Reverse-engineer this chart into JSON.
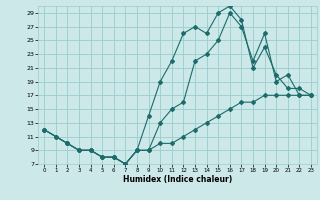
{
  "xlabel": "Humidex (Indice chaleur)",
  "bg_color": "#cce8e8",
  "grid_color": "#99cccc",
  "line_color": "#1e6b6b",
  "xlim": [
    -0.5,
    23.5
  ],
  "ylim": [
    7,
    30
  ],
  "xticks": [
    0,
    1,
    2,
    3,
    4,
    5,
    6,
    7,
    8,
    9,
    10,
    11,
    12,
    13,
    14,
    15,
    16,
    17,
    18,
    19,
    20,
    21,
    22,
    23
  ],
  "yticks": [
    7,
    9,
    11,
    13,
    15,
    17,
    19,
    21,
    23,
    25,
    27,
    29
  ],
  "line1_x": [
    0,
    1,
    2,
    3,
    4,
    5,
    6,
    7,
    8,
    9,
    10,
    11,
    12,
    13,
    14,
    15,
    16,
    17,
    18,
    19,
    20,
    21,
    22,
    23
  ],
  "line1_y": [
    12,
    11,
    10,
    9,
    9,
    8,
    8,
    7,
    9,
    9,
    10,
    10,
    11,
    12,
    13,
    14,
    15,
    16,
    16,
    17,
    17,
    17,
    17,
    17
  ],
  "line2_x": [
    0,
    1,
    2,
    3,
    4,
    5,
    6,
    7,
    8,
    9,
    10,
    11,
    12,
    13,
    14,
    15,
    16,
    17,
    18,
    19,
    20,
    21,
    22,
    23
  ],
  "line2_y": [
    12,
    11,
    10,
    9,
    9,
    8,
    8,
    7,
    9,
    14,
    19,
    22,
    26,
    27,
    26,
    29,
    30,
    28,
    21,
    24,
    20,
    18,
    18,
    17
  ],
  "line3_x": [
    0,
    2,
    3,
    4,
    5,
    6,
    7,
    8,
    9,
    10,
    11,
    12,
    13,
    14,
    15,
    16,
    17,
    18,
    19,
    20,
    21,
    22,
    23
  ],
  "line3_y": [
    12,
    10,
    9,
    9,
    8,
    8,
    7,
    9,
    9,
    13,
    15,
    16,
    22,
    23,
    25,
    29,
    27,
    22,
    26,
    19,
    20,
    17,
    17
  ]
}
